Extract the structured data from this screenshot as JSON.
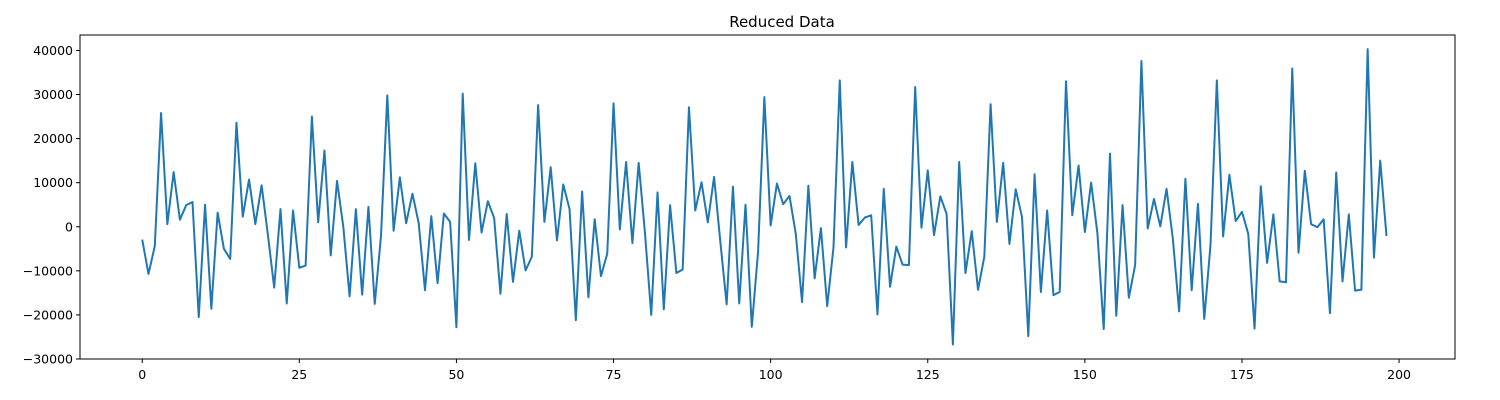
{
  "chart_data": {
    "type": "line",
    "title": "Reduced Data",
    "xlabel": "",
    "ylabel": "",
    "xlim": [
      -9.9,
      208.9
    ],
    "ylim": [
      -30000,
      43500
    ],
    "xticks": [
      0,
      25,
      50,
      75,
      100,
      125,
      150,
      175,
      200
    ],
    "xtick_labels": [
      "0",
      "25",
      "50",
      "75",
      "100",
      "125",
      "150",
      "175",
      "200"
    ],
    "yticks": [
      -30000,
      -20000,
      -10000,
      0,
      10000,
      20000,
      30000,
      40000
    ],
    "ytick_labels": [
      "−30000",
      "−20000",
      "−10000",
      "0",
      "10000",
      "20000",
      "30000",
      "40000"
    ],
    "grid": false,
    "line_color": "#1f77b4",
    "series": [
      {
        "values": [
          -2900,
          -10700,
          -4400,
          25800,
          600,
          12400,
          1600,
          4900,
          5600,
          -20500,
          5000,
          -18600,
          3200,
          -5000,
          -7300,
          23600,
          2300,
          10700,
          600,
          9400,
          -1800,
          -13800,
          4000,
          -17400,
          3700,
          -9300,
          -8800,
          25000,
          1000,
          17300,
          -6500,
          10400,
          0,
          -15800,
          4000,
          -15400,
          4500,
          -17500,
          -2000,
          29800,
          -900,
          11200,
          800,
          7500,
          800,
          -14400,
          2400,
          -12800,
          3000,
          1100,
          -22800,
          30200,
          -3000,
          14400,
          -1300,
          5800,
          2000,
          -15200,
          2900,
          -12500,
          -900,
          -9900,
          -6800,
          27600,
          1100,
          13500,
          -3100,
          9600,
          4000,
          -21200,
          8000,
          -16000,
          1700,
          -11200,
          -6100,
          28000,
          -600,
          14700,
          -3700,
          14500,
          -1400,
          -20000,
          7800,
          -18700,
          4900,
          -10500,
          -9700,
          27100,
          3700,
          10100,
          1000,
          11300,
          -3500,
          -17600,
          9100,
          -17400,
          5000,
          -22700,
          -5700,
          29400,
          300,
          9800,
          5100,
          7000,
          -1600,
          -17100,
          9300,
          -11700,
          -300,
          -18000,
          -4700,
          33200,
          -4700,
          14700,
          400,
          2100,
          2600,
          -19900,
          8600,
          -13600,
          -4500,
          -8600,
          -8700,
          31700,
          -200,
          12800,
          -1900,
          6900,
          2900,
          -26700,
          14700,
          -10500,
          -1000,
          -14300,
          -6800,
          27800,
          1100,
          14500,
          -3900,
          8500,
          2200,
          -24800,
          11900,
          -14800,
          3700,
          -15500,
          -14800,
          33000,
          2600,
          13900,
          -1200,
          10000,
          -1500,
          -23200,
          16600,
          -20200,
          4900,
          -16100,
          -8700,
          37600,
          -400,
          6300,
          100,
          8600,
          -2700,
          -19200,
          10900,
          -14400,
          5200,
          -20900,
          -4000,
          33200,
          -2200,
          11800,
          1300,
          3400,
          -1600,
          -23100,
          9200,
          -8200,
          2800,
          -12400,
          -12600,
          35900,
          -5900,
          12700,
          600,
          -100,
          1700,
          -19600,
          12300,
          -12400,
          2800,
          -14500,
          -14300,
          40300,
          -7000,
          15000,
          -2100
        ]
      }
    ]
  }
}
